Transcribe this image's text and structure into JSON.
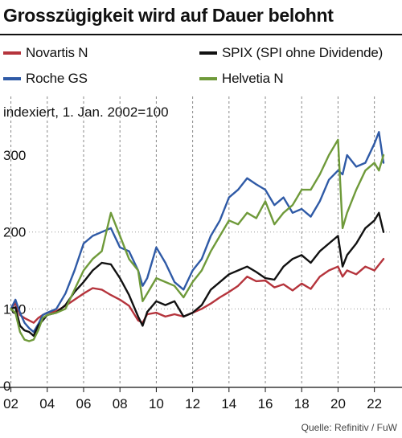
{
  "chart_data": {
    "type": "line",
    "title": "Grosszügigkeit wird auf Dauer belohnt",
    "subtitle": "indexiert, 1. Jan. 2002=100",
    "source": "Quelle: Refinitiv / FuW",
    "ylim": [
      0,
      345
    ],
    "xlim": [
      2001.4,
      2022.9
    ],
    "y_ticks": [
      {
        "value": 0,
        "label": "0"
      },
      {
        "value": 100,
        "label": "100"
      },
      {
        "value": 200,
        "label": "200"
      },
      {
        "value": 300,
        "label": "300"
      }
    ],
    "x_ticks": [
      {
        "value": 2002,
        "label": "02"
      },
      {
        "value": 2004,
        "label": "04"
      },
      {
        "value": 2006,
        "label": "06"
      },
      {
        "value": 2008,
        "label": "08"
      },
      {
        "value": 2010,
        "label": "10"
      },
      {
        "value": 2012,
        "label": "12"
      },
      {
        "value": 2014,
        "label": "14"
      },
      {
        "value": 2016,
        "label": "16"
      },
      {
        "value": 2018,
        "label": "18"
      },
      {
        "value": 2020,
        "label": "20"
      },
      {
        "value": 2022,
        "label": "22"
      }
    ],
    "grid": "vertical dashed at x ticks; horizontal dotted at 100 and 200",
    "legend_position": "top",
    "series": [
      {
        "name": "Novartis N",
        "color": "#b5343c",
        "x": [
          2002.0,
          2002.25,
          2002.5,
          2002.75,
          2003.0,
          2003.25,
          2003.5,
          2003.75,
          2004.0,
          2004.5,
          2005.0,
          2005.5,
          2006.0,
          2006.5,
          2007.0,
          2007.5,
          2008.0,
          2008.5,
          2009.0,
          2009.25,
          2009.5,
          2010.0,
          2010.5,
          2011.0,
          2011.5,
          2012.0,
          2012.5,
          2013.0,
          2013.5,
          2014.0,
          2014.5,
          2015.0,
          2015.5,
          2016.0,
          2016.5,
          2017.0,
          2017.5,
          2018.0,
          2018.5,
          2019.0,
          2019.5,
          2020.0,
          2020.25,
          2020.5,
          2021.0,
          2021.5,
          2022.0,
          2022.5
        ],
        "values": [
          100,
          108,
          92,
          88,
          85,
          82,
          88,
          92,
          95,
          97,
          104,
          112,
          120,
          127,
          125,
          118,
          112,
          104,
          85,
          82,
          93,
          95,
          90,
          93,
          90,
          95,
          100,
          107,
          115,
          122,
          130,
          142,
          136,
          137,
          128,
          132,
          124,
          133,
          126,
          142,
          150,
          155,
          142,
          150,
          145,
          155,
          150,
          165
        ]
      },
      {
        "name": "Roche GS",
        "color": "#2f5aa6",
        "x": [
          2002.0,
          2002.25,
          2002.5,
          2002.75,
          2003.0,
          2003.25,
          2003.5,
          2003.75,
          2004.0,
          2004.5,
          2005.0,
          2005.5,
          2006.0,
          2006.5,
          2007.0,
          2007.5,
          2008.0,
          2008.5,
          2009.0,
          2009.25,
          2009.5,
          2010.0,
          2010.5,
          2011.0,
          2011.5,
          2012.0,
          2012.5,
          2013.0,
          2013.5,
          2014.0,
          2014.5,
          2015.0,
          2015.5,
          2016.0,
          2016.5,
          2017.0,
          2017.5,
          2018.0,
          2018.5,
          2019.0,
          2019.5,
          2020.0,
          2020.25,
          2020.5,
          2021.0,
          2021.5,
          2022.0,
          2022.25,
          2022.5
        ],
        "values": [
          100,
          112,
          95,
          82,
          75,
          70,
          80,
          92,
          95,
          100,
          120,
          150,
          185,
          195,
          200,
          205,
          180,
          175,
          150,
          130,
          140,
          180,
          160,
          135,
          125,
          150,
          165,
          195,
          215,
          245,
          255,
          270,
          262,
          255,
          235,
          245,
          225,
          230,
          220,
          240,
          268,
          280,
          275,
          300,
          285,
          290,
          315,
          330,
          290
        ]
      },
      {
        "name": "SPIX (SPI ohne Dividende)",
        "color": "#111111",
        "x": [
          2002.0,
          2002.25,
          2002.5,
          2002.75,
          2003.0,
          2003.25,
          2003.5,
          2003.75,
          2004.0,
          2004.5,
          2005.0,
          2005.5,
          2006.0,
          2006.5,
          2007.0,
          2007.5,
          2008.0,
          2008.5,
          2009.0,
          2009.25,
          2009.5,
          2010.0,
          2010.5,
          2011.0,
          2011.5,
          2012.0,
          2012.5,
          2013.0,
          2013.5,
          2014.0,
          2014.5,
          2015.0,
          2015.5,
          2016.0,
          2016.5,
          2017.0,
          2017.5,
          2018.0,
          2018.5,
          2019.0,
          2019.5,
          2020.0,
          2020.25,
          2020.5,
          2021.0,
          2021.5,
          2022.0,
          2022.25,
          2022.5
        ],
        "values": [
          100,
          102,
          78,
          72,
          70,
          65,
          78,
          85,
          92,
          95,
          105,
          122,
          135,
          150,
          160,
          158,
          140,
          118,
          90,
          78,
          96,
          110,
          105,
          110,
          90,
          95,
          105,
          125,
          135,
          145,
          150,
          155,
          148,
          140,
          138,
          155,
          165,
          170,
          160,
          175,
          185,
          195,
          155,
          170,
          185,
          205,
          215,
          225,
          200
        ]
      },
      {
        "name": "Helvetia N",
        "color": "#6f9a3a",
        "x": [
          2002.0,
          2002.25,
          2002.5,
          2002.75,
          2003.0,
          2003.25,
          2003.5,
          2003.75,
          2004.0,
          2004.5,
          2005.0,
          2005.5,
          2006.0,
          2006.5,
          2007.0,
          2007.5,
          2008.0,
          2008.5,
          2009.0,
          2009.25,
          2009.5,
          2010.0,
          2010.5,
          2011.0,
          2011.5,
          2012.0,
          2012.5,
          2013.0,
          2013.5,
          2014.0,
          2014.5,
          2015.0,
          2015.5,
          2016.0,
          2016.5,
          2017.0,
          2017.5,
          2018.0,
          2018.5,
          2019.0,
          2019.5,
          2020.0,
          2020.25,
          2020.5,
          2021.0,
          2021.5,
          2022.0,
          2022.25,
          2022.5
        ],
        "values": [
          100,
          95,
          70,
          60,
          58,
          60,
          72,
          88,
          92,
          95,
          100,
          125,
          150,
          165,
          175,
          225,
          195,
          165,
          150,
          110,
          120,
          140,
          135,
          130,
          115,
          135,
          150,
          175,
          195,
          215,
          210,
          225,
          218,
          240,
          210,
          225,
          235,
          255,
          255,
          275,
          300,
          320,
          205,
          225,
          255,
          280,
          290,
          280,
          300
        ]
      }
    ]
  }
}
